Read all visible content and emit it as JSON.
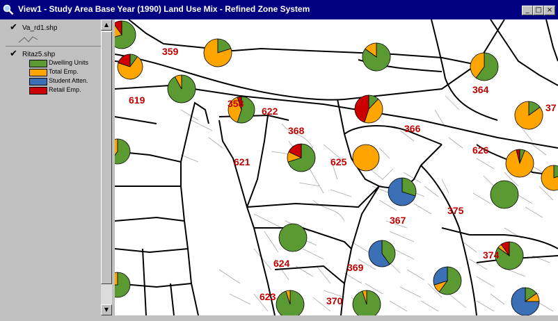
{
  "window": {
    "title": "View1 - Study Area Base Year (1990) Land Use Mix - Refined Zone System",
    "minimize_glyph": "_",
    "maximize_glyph": "□",
    "close_glyph": "×"
  },
  "toc": {
    "layers": [
      {
        "name": "Va_rd1.shp",
        "visible": true,
        "icon": "line-symbol-icon"
      },
      {
        "name": "Ritaz5.shp",
        "visible": true
      }
    ],
    "legend": [
      {
        "label": "Dwelling Units",
        "color": "#5b9a33"
      },
      {
        "label": "Total Emp.",
        "color": "#ffa500"
      },
      {
        "label": "Student Atten.",
        "color": "#3b6fb6"
      },
      {
        "label": "Retail Emp.",
        "color": "#cc0000"
      }
    ],
    "scroll_up_glyph": "▲",
    "scroll_down_glyph": "▼"
  },
  "map": {
    "zone_labels": [
      "359",
      "619",
      "358",
      "622",
      "368",
      "366",
      "364",
      "37",
      "621",
      "625",
      "626",
      "367",
      "375",
      "624",
      "369",
      "374",
      "623",
      "370"
    ],
    "pie_colors": {
      "dwelling": "#5b9a33",
      "employment": "#ffa500",
      "student": "#3b6fb6",
      "retail": "#cc0000"
    }
  }
}
